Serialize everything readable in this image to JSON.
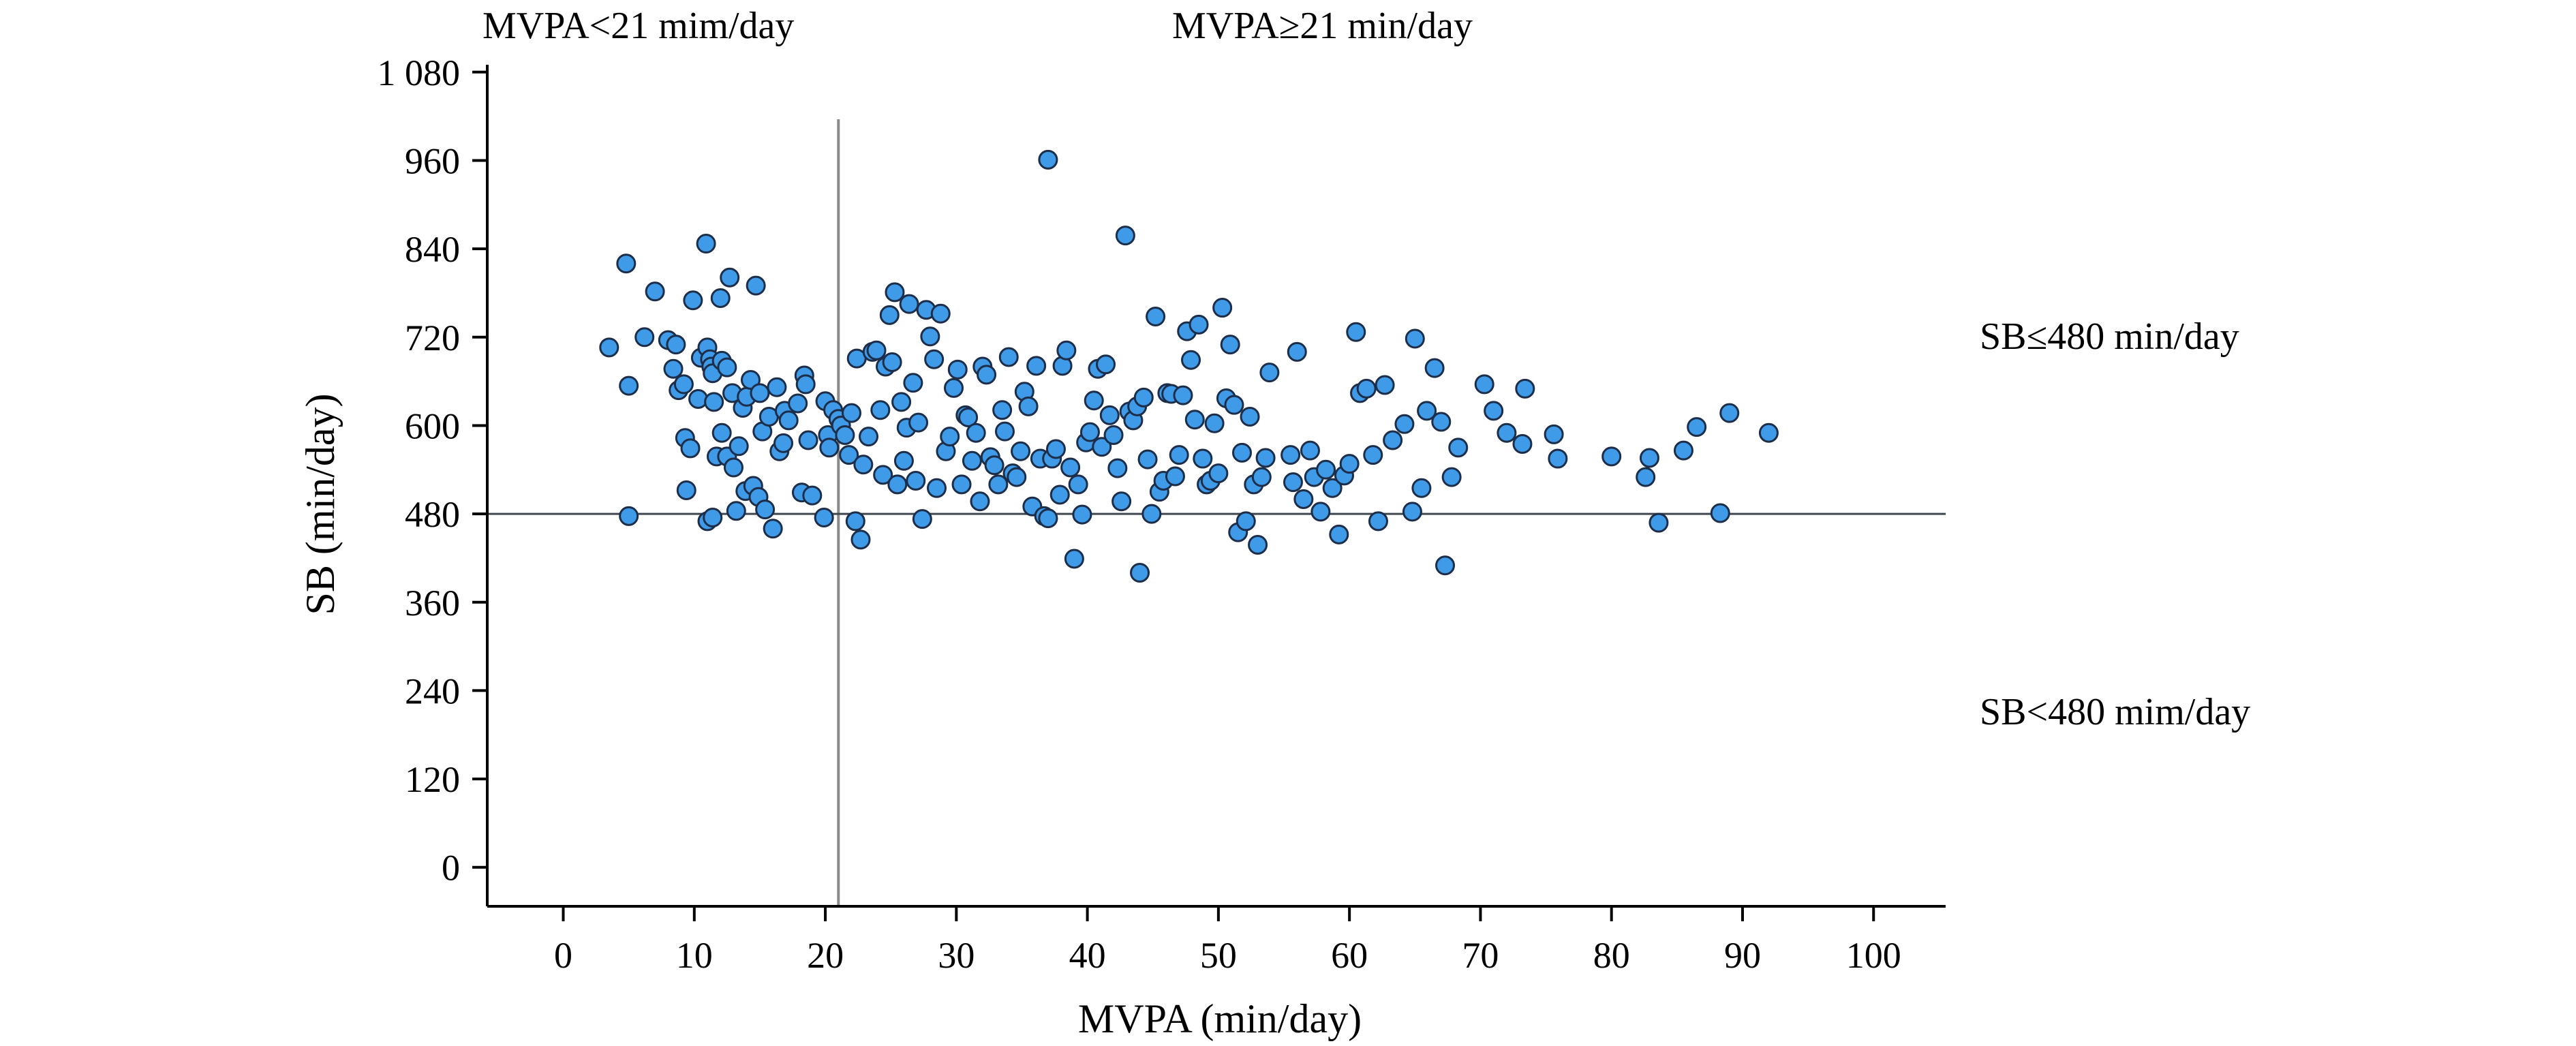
{
  "chart_data": {
    "type": "scatter",
    "xlabel": "MVPA (min/day)",
    "ylabel": "SB (min/day)",
    "xlim": [
      -5.8,
      105.5
    ],
    "ylim": [
      -53,
      1090
    ],
    "x_ticks": [
      0,
      10,
      20,
      30,
      40,
      50,
      60,
      70,
      80,
      90,
      100
    ],
    "y_ticks": [
      0,
      120,
      240,
      360,
      480,
      600,
      720,
      840,
      960,
      1080
    ],
    "x_tick_labels": [
      "0",
      "10",
      "20",
      "30",
      "40",
      "50",
      "60",
      "70",
      "80",
      "90",
      "100"
    ],
    "y_tick_labels": [
      "0",
      "120",
      "240",
      "360",
      "480",
      "600",
      "720",
      "840",
      "960",
      "1 080"
    ],
    "reference_lines": [
      {
        "orientation": "vertical",
        "value": 21
      },
      {
        "orientation": "horizontal",
        "value": 480
      }
    ],
    "annotations": {
      "top_left": "MVPA<21 mim/day",
      "top_right": "MVPA≥21 min/day",
      "right_upper": "SB≤480 min/day",
      "right_lower": "SB<480 mim/day"
    },
    "grid": false,
    "colors": {
      "marker_fill": "#3f9be8",
      "marker_stroke": "#1c2e4a",
      "reference_line": "#8a8a8a",
      "axis": "#000000"
    },
    "points": [
      [
        3.5,
        706
      ],
      [
        4.8,
        820
      ],
      [
        5.0,
        654
      ],
      [
        5.0,
        477
      ],
      [
        6.2,
        720
      ],
      [
        7.0,
        782
      ],
      [
        8.0,
        716
      ],
      [
        8.4,
        677
      ],
      [
        8.6,
        710
      ],
      [
        8.8,
        648
      ],
      [
        9.2,
        656
      ],
      [
        9.3,
        583
      ],
      [
        9.4,
        512
      ],
      [
        9.7,
        569
      ],
      [
        9.9,
        770
      ],
      [
        10.3,
        636
      ],
      [
        10.5,
        692
      ],
      [
        10.9,
        847
      ],
      [
        11.0,
        706
      ],
      [
        11.2,
        690
      ],
      [
        11.3,
        680
      ],
      [
        11.4,
        671
      ],
      [
        11.0,
        470
      ],
      [
        11.4,
        475
      ],
      [
        11.5,
        632
      ],
      [
        11.7,
        558
      ],
      [
        12.0,
        773
      ],
      [
        12.1,
        688
      ],
      [
        12.1,
        590
      ],
      [
        12.5,
        679
      ],
      [
        12.5,
        558
      ],
      [
        12.7,
        801
      ],
      [
        12.9,
        644
      ],
      [
        13.0,
        543
      ],
      [
        13.2,
        484
      ],
      [
        13.4,
        572
      ],
      [
        13.7,
        624
      ],
      [
        13.9,
        511
      ],
      [
        14.0,
        639
      ],
      [
        14.3,
        662
      ],
      [
        14.5,
        518
      ],
      [
        14.7,
        790
      ],
      [
        14.9,
        503
      ],
      [
        15.0,
        644
      ],
      [
        15.2,
        592
      ],
      [
        15.4,
        486
      ],
      [
        15.7,
        612
      ],
      [
        16.0,
        460
      ],
      [
        16.3,
        652
      ],
      [
        16.5,
        565
      ],
      [
        16.8,
        576
      ],
      [
        16.9,
        620
      ],
      [
        17.2,
        607
      ],
      [
        17.9,
        630
      ],
      [
        18.2,
        509
      ],
      [
        18.4,
        668
      ],
      [
        18.5,
        656
      ],
      [
        18.7,
        580
      ],
      [
        19.0,
        505
      ],
      [
        19.9,
        475
      ],
      [
        20.0,
        633
      ],
      [
        20.2,
        587
      ],
      [
        20.3,
        570
      ],
      [
        20.6,
        621
      ],
      [
        21.0,
        609
      ],
      [
        21.2,
        600
      ],
      [
        21.5,
        587
      ],
      [
        21.8,
        560
      ],
      [
        22.0,
        617
      ],
      [
        22.3,
        470
      ],
      [
        22.4,
        691
      ],
      [
        22.7,
        445
      ],
      [
        22.9,
        547
      ],
      [
        23.3,
        585
      ],
      [
        23.6,
        700
      ],
      [
        23.9,
        702
      ],
      [
        24.2,
        621
      ],
      [
        24.4,
        533
      ],
      [
        24.6,
        680
      ],
      [
        24.9,
        750
      ],
      [
        25.1,
        686
      ],
      [
        25.3,
        781
      ],
      [
        25.5,
        520
      ],
      [
        25.8,
        632
      ],
      [
        26.0,
        552
      ],
      [
        26.2,
        597
      ],
      [
        26.4,
        765
      ],
      [
        26.7,
        658
      ],
      [
        26.9,
        525
      ],
      [
        27.1,
        604
      ],
      [
        27.4,
        473
      ],
      [
        27.7,
        757
      ],
      [
        28.0,
        721
      ],
      [
        28.3,
        690
      ],
      [
        28.5,
        515
      ],
      [
        28.8,
        752
      ],
      [
        29.2,
        565
      ],
      [
        29.5,
        585
      ],
      [
        29.8,
        651
      ],
      [
        30.1,
        676
      ],
      [
        30.4,
        520
      ],
      [
        30.7,
        614
      ],
      [
        30.9,
        611
      ],
      [
        31.2,
        552
      ],
      [
        31.5,
        590
      ],
      [
        31.8,
        497
      ],
      [
        32.0,
        680
      ],
      [
        32.3,
        669
      ],
      [
        32.6,
        557
      ],
      [
        32.9,
        546
      ],
      [
        33.2,
        520
      ],
      [
        33.5,
        621
      ],
      [
        33.7,
        592
      ],
      [
        34.0,
        693
      ],
      [
        34.3,
        535
      ],
      [
        34.6,
        530
      ],
      [
        34.9,
        565
      ],
      [
        35.2,
        646
      ],
      [
        35.5,
        626
      ],
      [
        35.8,
        490
      ],
      [
        36.1,
        681
      ],
      [
        36.4,
        555
      ],
      [
        36.7,
        477
      ],
      [
        37.0,
        961
      ],
      [
        37.0,
        474
      ],
      [
        37.3,
        555
      ],
      [
        37.6,
        568
      ],
      [
        37.9,
        506
      ],
      [
        38.1,
        681
      ],
      [
        38.4,
        702
      ],
      [
        38.7,
        543
      ],
      [
        39.0,
        419
      ],
      [
        39.3,
        520
      ],
      [
        39.6,
        479
      ],
      [
        39.9,
        577
      ],
      [
        40.2,
        591
      ],
      [
        40.5,
        634
      ],
      [
        40.8,
        677
      ],
      [
        41.1,
        571
      ],
      [
        41.4,
        683
      ],
      [
        41.7,
        614
      ],
      [
        42.0,
        587
      ],
      [
        42.3,
        542
      ],
      [
        42.6,
        497
      ],
      [
        42.9,
        858
      ],
      [
        43.2,
        619
      ],
      [
        43.5,
        607
      ],
      [
        43.8,
        626
      ],
      [
        44.0,
        400
      ],
      [
        44.3,
        638
      ],
      [
        44.6,
        554
      ],
      [
        44.9,
        480
      ],
      [
        45.2,
        748
      ],
      [
        45.5,
        510
      ],
      [
        45.8,
        525
      ],
      [
        46.1,
        644
      ],
      [
        46.4,
        643
      ],
      [
        46.7,
        531
      ],
      [
        47.0,
        560
      ],
      [
        47.3,
        641
      ],
      [
        47.6,
        728
      ],
      [
        47.9,
        689
      ],
      [
        48.2,
        608
      ],
      [
        48.5,
        737
      ],
      [
        48.8,
        555
      ],
      [
        49.1,
        520
      ],
      [
        49.4,
        525
      ],
      [
        49.7,
        603
      ],
      [
        50.0,
        535
      ],
      [
        50.3,
        760
      ],
      [
        50.6,
        637
      ],
      [
        50.9,
        710
      ],
      [
        51.2,
        628
      ],
      [
        51.5,
        455
      ],
      [
        51.8,
        563
      ],
      [
        52.1,
        470
      ],
      [
        52.4,
        612
      ],
      [
        52.7,
        520
      ],
      [
        53.0,
        438
      ],
      [
        53.3,
        530
      ],
      [
        53.6,
        556
      ],
      [
        53.9,
        672
      ],
      [
        55.5,
        560
      ],
      [
        55.7,
        523
      ],
      [
        56.0,
        700
      ],
      [
        56.5,
        500
      ],
      [
        57.0,
        566
      ],
      [
        57.3,
        530
      ],
      [
        57.8,
        483
      ],
      [
        58.2,
        540
      ],
      [
        58.7,
        515
      ],
      [
        59.2,
        452
      ],
      [
        59.6,
        532
      ],
      [
        60.0,
        548
      ],
      [
        60.5,
        727
      ],
      [
        60.8,
        644
      ],
      [
        61.3,
        650
      ],
      [
        61.8,
        560
      ],
      [
        62.2,
        470
      ],
      [
        62.7,
        655
      ],
      [
        63.3,
        580
      ],
      [
        64.2,
        602
      ],
      [
        64.8,
        483
      ],
      [
        65.0,
        718
      ],
      [
        65.5,
        515
      ],
      [
        65.9,
        620
      ],
      [
        66.5,
        678
      ],
      [
        67.0,
        605
      ],
      [
        67.3,
        410
      ],
      [
        67.8,
        530
      ],
      [
        68.3,
        570
      ],
      [
        70.3,
        656
      ],
      [
        71.0,
        620
      ],
      [
        72.0,
        590
      ],
      [
        73.2,
        575
      ],
      [
        73.4,
        650
      ],
      [
        75.6,
        588
      ],
      [
        75.9,
        555
      ],
      [
        80.0,
        558
      ],
      [
        82.6,
        530
      ],
      [
        82.9,
        556
      ],
      [
        83.6,
        468
      ],
      [
        85.5,
        566
      ],
      [
        86.5,
        598
      ],
      [
        88.3,
        481
      ],
      [
        89.0,
        617
      ],
      [
        92.0,
        590
      ]
    ]
  }
}
